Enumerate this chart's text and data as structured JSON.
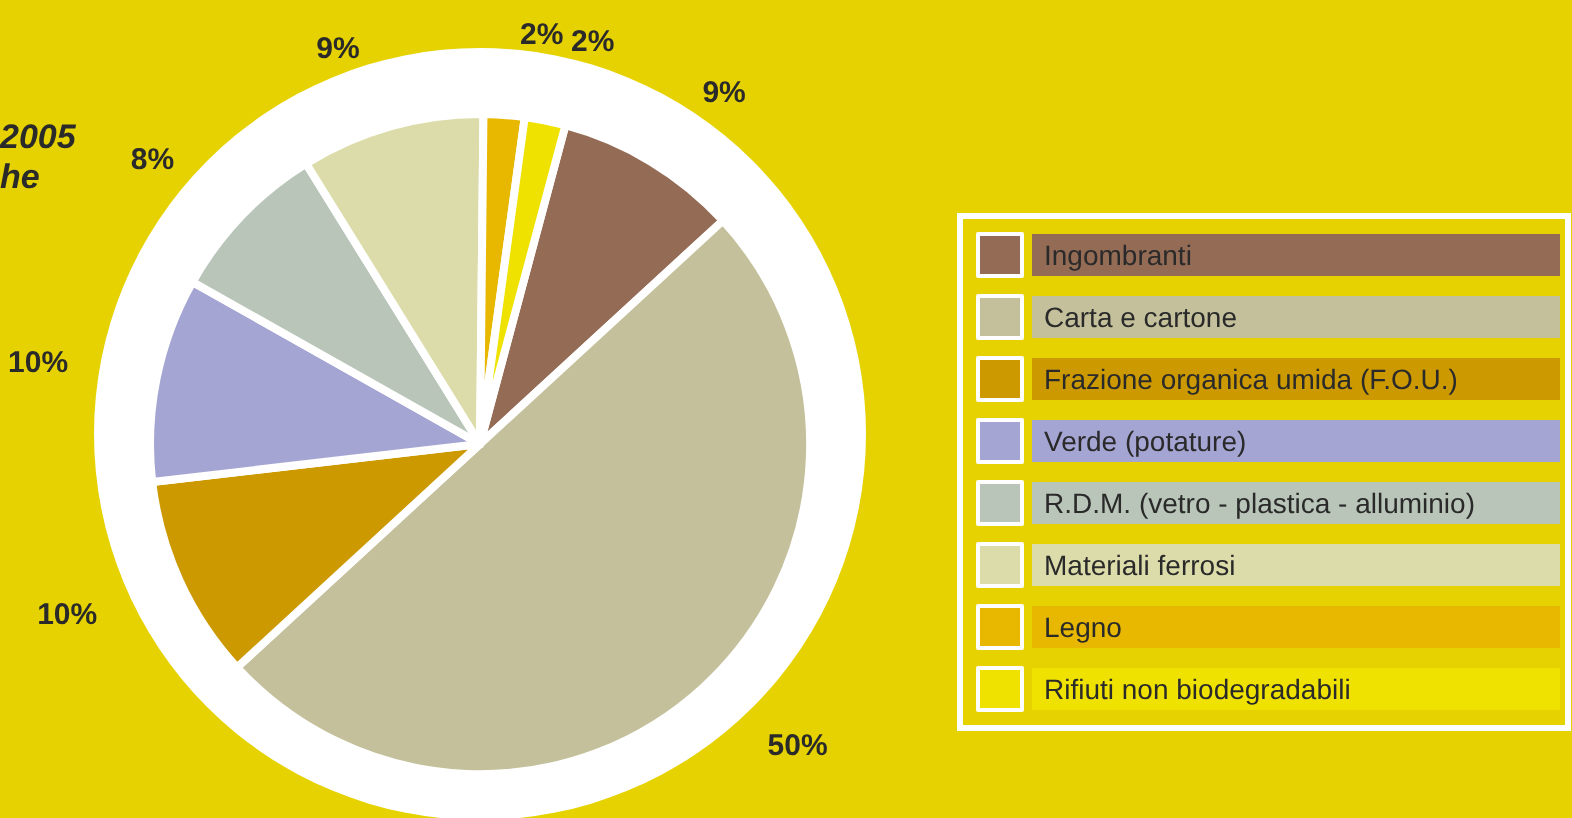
{
  "chart_data": {
    "type": "pie",
    "categories": [
      "Ingombranti",
      "Carta e cartone",
      "Frazione organica umida (F.O.U.)",
      "Verde (potature)",
      "R.D.M. (vetro - plastica - alluminio)",
      "Materiali ferrosi",
      "Legno",
      "Rifiuti non biodegradabili"
    ],
    "values": [
      9,
      50,
      10,
      10,
      8,
      9,
      2,
      2
    ],
    "value_labels": [
      "9%",
      "50%",
      "10%",
      "10%",
      "8%",
      "9%",
      "2%",
      "2%"
    ],
    "colors": [
      "#946b55",
      "#c4c09b",
      "#cc9900",
      "#a5a5d4",
      "#b8c5b8",
      "#dcdcaa",
      "#e8b800",
      "#f0e200"
    ],
    "legend": "right",
    "annotations": [
      "2005",
      "he"
    ]
  }
}
